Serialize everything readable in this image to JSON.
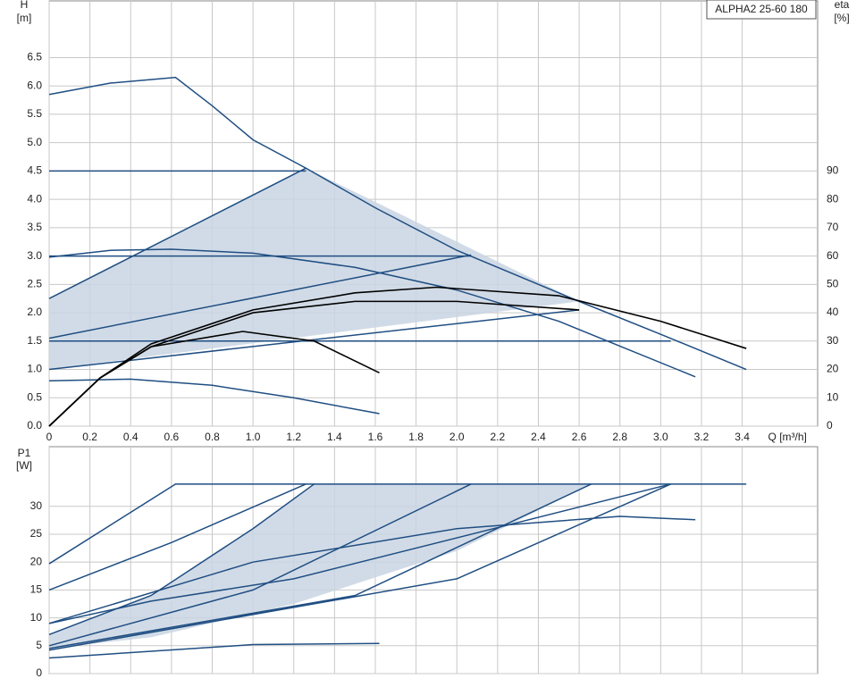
{
  "chart_data": [
    {
      "type": "line",
      "y_label": "H",
      "y_unit": "[m]",
      "y2_label": "eta",
      "y2_unit": "[%]",
      "x_label": "Q [m³/h]",
      "legend": "ALPHA2 25-60 180",
      "xlim": [
        0,
        3.77
      ],
      "ylim": [
        0,
        7.5
      ],
      "y2lim": [
        0,
        150
      ],
      "xticks": [
        0,
        0.2,
        0.4,
        0.6,
        0.8,
        {
          "value": 1,
          "label": "1.0"
        },
        1.2,
        1.4,
        1.6,
        1.8,
        {
          "value": 2,
          "label": "2.0"
        },
        2.2,
        2.4,
        2.6,
        2.8,
        {
          "value": 3,
          "label": "3.0"
        },
        3.2,
        3.4
      ],
      "yticks": [
        {
          "value": 0,
          "label": "0.0"
        },
        0.5,
        {
          "value": 1,
          "label": "1.0"
        },
        1.5,
        {
          "value": 2,
          "label": "2.0"
        },
        2.5,
        {
          "value": 3,
          "label": "3.0"
        },
        3.5,
        {
          "value": 4,
          "label": "4.0"
        },
        4.5,
        {
          "value": 5,
          "label": "5.0"
        },
        5.5,
        {
          "value": 6,
          "label": "6.0"
        },
        6.5
      ],
      "y2ticks": [
        0,
        10,
        20,
        30,
        40,
        50,
        60,
        70,
        80,
        90
      ],
      "series": [
        {
          "kind": "area",
          "color": "#c9d5e3",
          "x": [
            0,
            1.26,
            2.6,
            0
          ],
          "values": [
            2.25,
            4.55,
            2.2,
            1.0
          ]
        },
        {
          "color": "#1f4e82",
          "x": [
            0,
            0.3,
            0.62,
            0.8,
            1.0,
            1.26,
            1.6,
            2.0,
            2.6,
            3.0,
            3.42
          ],
          "values": [
            5.85,
            6.05,
            6.15,
            5.65,
            5.05,
            4.55,
            3.85,
            3.1,
            2.2,
            1.62,
            1.0
          ]
        },
        {
          "color": "#1f4e82",
          "x": [
            0,
            1.26
          ],
          "values": [
            4.5,
            4.5
          ]
        },
        {
          "color": "#1f4e82",
          "x": [
            0,
            2.07
          ],
          "values": [
            3.0,
            3.0
          ]
        },
        {
          "color": "#1f4e82",
          "x": [
            0,
            3.05
          ],
          "values": [
            1.5,
            1.5
          ]
        },
        {
          "color": "#1f4e82",
          "x": [
            0,
            1.26
          ],
          "values": [
            2.25,
            4.55
          ]
        },
        {
          "color": "#1f4e82",
          "x": [
            0,
            2.07
          ],
          "values": [
            1.55,
            3.02
          ]
        },
        {
          "color": "#1f4e82",
          "x": [
            0,
            2.6
          ],
          "values": [
            1.0,
            2.05
          ]
        },
        {
          "color": "#1f4e82",
          "x": [
            0,
            0.3,
            0.6,
            1.0,
            1.5,
            2.0,
            2.5,
            3.17
          ],
          "values": [
            2.98,
            3.1,
            3.12,
            3.05,
            2.8,
            2.4,
            1.85,
            0.87
          ]
        },
        {
          "color": "#1f4e82",
          "x": [
            0,
            0.4,
            0.8,
            1.2,
            1.62
          ],
          "values": [
            0.8,
            0.83,
            0.72,
            0.5,
            0.22
          ]
        },
        {
          "axis": "y2",
          "color": "#000000",
          "x": [
            0,
            0.25,
            0.5,
            1.0,
            1.5,
            1.9,
            2.5,
            3.0,
            3.42
          ],
          "values": [
            0,
            17,
            29,
            41,
            47,
            49,
            46,
            37,
            27.4
          ]
        },
        {
          "axis": "y2",
          "color": "#000000",
          "x": [
            0,
            0.25,
            0.5,
            1.0,
            1.5,
            2.0,
            2.6
          ],
          "values": [
            0,
            17,
            28,
            40,
            44,
            44,
            41
          ]
        },
        {
          "axis": "y2",
          "color": "#000000",
          "x": [
            0,
            0.25,
            0.5,
            0.95,
            1.3,
            1.62
          ],
          "values": [
            0,
            17,
            28,
            33.4,
            30,
            18.8
          ]
        }
      ]
    },
    {
      "type": "line",
      "y_label": "P1",
      "y_unit": "[W]",
      "xlim": [
        0,
        3.77
      ],
      "ylim": [
        0,
        40.7
      ],
      "xticks": [
        0,
        0.2,
        0.4,
        0.6,
        0.8,
        1,
        1.2,
        1.4,
        1.6,
        1.8,
        2,
        2.2,
        2.4,
        2.6,
        2.8,
        3,
        3.2,
        3.4
      ],
      "yticks": [
        0,
        5,
        10,
        15,
        20,
        25,
        30
      ],
      "series": [
        {
          "kind": "area",
          "color": "#c9d5e3",
          "x": [
            0,
            0.5,
            1.0,
            1.3,
            2.66,
            2.0,
            1.2,
            0.5,
            0
          ],
          "values": [
            7,
            14,
            26,
            34,
            34,
            22,
            12.5,
            6.5,
            4.5
          ]
        },
        {
          "color": "#1f4e82",
          "x": [
            0,
            0.62,
            3.42
          ],
          "values": [
            19.7,
            34,
            34
          ]
        },
        {
          "color": "#1f4e82",
          "x": [
            0,
            0.6,
            1.26
          ],
          "values": [
            15,
            23.5,
            34
          ]
        },
        {
          "color": "#1f4e82",
          "x": [
            0,
            0.5,
            1.0,
            1.3
          ],
          "values": [
            7,
            14,
            26,
            34
          ]
        },
        {
          "color": "#1f4e82",
          "x": [
            0,
            1.0,
            2.07
          ],
          "values": [
            5,
            15,
            34
          ]
        },
        {
          "color": "#1f4e82",
          "x": [
            0,
            1.5,
            2.66
          ],
          "values": [
            4.5,
            14,
            34
          ]
        },
        {
          "color": "#1f4e82",
          "x": [
            0,
            2.0,
            3.05
          ],
          "values": [
            4.2,
            17,
            34
          ]
        },
        {
          "color": "#1f4e82",
          "x": [
            0,
            0.5,
            1.2,
            3.05
          ],
          "values": [
            9,
            13,
            17,
            34
          ]
        },
        {
          "color": "#1f4e82",
          "x": [
            0,
            1.0,
            2.0,
            2.8,
            3.17
          ],
          "values": [
            9,
            20,
            26,
            28.2,
            27.6
          ]
        },
        {
          "color": "#1f4e82",
          "x": [
            0,
            1.0,
            1.62
          ],
          "values": [
            2.8,
            5.2,
            5.4
          ]
        }
      ]
    }
  ]
}
